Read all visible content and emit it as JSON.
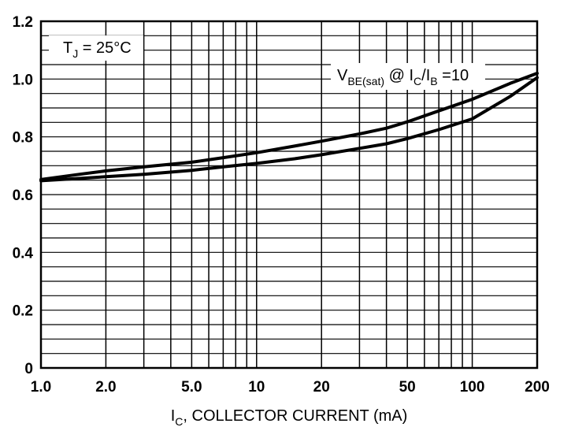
{
  "chart_data": {
    "type": "line",
    "x_scale": "log",
    "xlim": [
      1,
      200
    ],
    "ylim": [
      0,
      1.2
    ],
    "grid": true,
    "xlabel": {
      "main": "I",
      "sub": "C",
      "rest": ", COLLECTOR CURRENT (mA)"
    },
    "ylabel": "",
    "x_ticks": [
      {
        "value": 1,
        "label": "1.0"
      },
      {
        "value": 2,
        "label": "2.0"
      },
      {
        "value": 5,
        "label": "5.0"
      },
      {
        "value": 10,
        "label": "10"
      },
      {
        "value": 20,
        "label": "20"
      },
      {
        "value": 50,
        "label": "50"
      },
      {
        "value": 100,
        "label": "100"
      },
      {
        "value": 200,
        "label": "200"
      }
    ],
    "y_ticks": [
      {
        "value": 0,
        "label": "0"
      },
      {
        "value": 0.2,
        "label": "0.2"
      },
      {
        "value": 0.4,
        "label": "0.4"
      },
      {
        "value": 0.6,
        "label": "0.6"
      },
      {
        "value": 0.8,
        "label": "0.8"
      },
      {
        "value": 1.0,
        "label": "1.0"
      },
      {
        "value": 1.2,
        "label": "1.2"
      }
    ],
    "annotations": {
      "temperature": {
        "t1": "T",
        "s1": "J",
        "t2": " = 25°C"
      },
      "curve_label": {
        "t1": "V",
        "s1": "BE(sat)",
        "t2": " @ I",
        "s2": "C",
        "t3": "/I",
        "s3": "B",
        "t4": " =10"
      }
    },
    "series": [
      {
        "x": [
          1,
          1.5,
          2,
          3,
          5,
          7,
          10,
          15,
          20,
          30,
          40,
          50,
          70,
          100,
          150,
          200
        ],
        "y": [
          0.652,
          0.67,
          0.682,
          0.696,
          0.712,
          0.728,
          0.745,
          0.768,
          0.785,
          0.81,
          0.83,
          0.852,
          0.89,
          0.93,
          0.985,
          1.02
        ]
      },
      {
        "x": [
          1,
          1.5,
          2,
          3,
          5,
          7,
          10,
          15,
          20,
          30,
          40,
          50,
          70,
          100,
          150,
          200
        ],
        "y": [
          0.648,
          0.656,
          0.662,
          0.67,
          0.684,
          0.696,
          0.708,
          0.724,
          0.738,
          0.76,
          0.776,
          0.794,
          0.825,
          0.862,
          0.94,
          1.005
        ]
      }
    ]
  }
}
